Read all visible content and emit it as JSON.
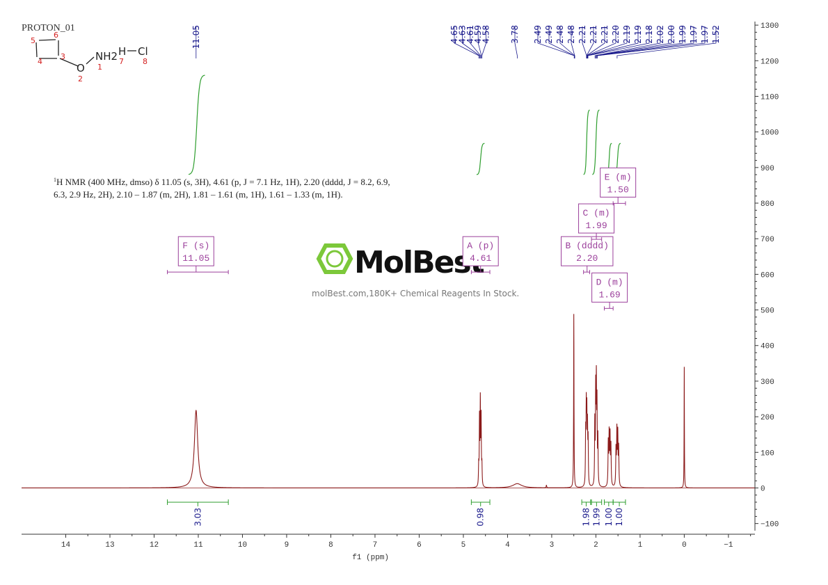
{
  "experiment_label": "PROTON_01",
  "molecule": {
    "atoms": [
      {
        "symbol": "O",
        "number": "2"
      },
      {
        "symbol": "NH2",
        "number": "1"
      },
      {
        "symbol": "H",
        "number": "7"
      },
      {
        "symbol": "Cl",
        "number": "8"
      }
    ],
    "ring_numbers": [
      "3",
      "4",
      "5",
      "6"
    ]
  },
  "nmr_summary": {
    "line1": "H NMR (400 MHz, dmso) δ 11.05 (s, 3H), 4.61 (p, J = 7.1 Hz, 1H), 2.20 (dddd, J = 8.2, 6.9,",
    "superscript": "1",
    "line2": "6.3, 2.9 Hz, 2H), 2.10 – 1.87 (m, 2H), 1.81 – 1.61 (m, 1H), 1.61 – 1.33 (m, 1H)."
  },
  "watermark": {
    "brand": "MolBest",
    "tagline": "molBest.com,180K+ Chemical Reagents In Stock."
  },
  "colors": {
    "spectrum": "#8b1a1a",
    "peak_labels": "#1a1a8c",
    "integral": "#2e9e2e",
    "multiplet": "#9b3f9b",
    "axis": "#333333",
    "logo_green": "#7cc83a"
  },
  "chart_data": {
    "type": "line",
    "xlabel": "f1 (ppm)",
    "x_reversed": true,
    "xlim": [
      15.0,
      -1.6
    ],
    "ylim": [
      -130,
      1310
    ],
    "x_ticks": [
      14,
      13,
      12,
      11,
      10,
      9,
      8,
      7,
      6,
      5,
      4,
      3,
      2,
      1,
      0,
      -1
    ],
    "x_tick_labels": [
      "14",
      "13",
      "12",
      "11",
      "10",
      "9",
      "8",
      "7",
      "6",
      "5",
      "4",
      "3",
      "2",
      "1",
      "0",
      "−1"
    ],
    "y_ticks": [
      -100,
      0,
      100,
      200,
      300,
      400,
      500,
      600,
      700,
      800,
      900,
      1000,
      1100,
      1200,
      1300
    ],
    "y_tick_labels": [
      "−100",
      "0",
      "100",
      "200",
      "300",
      "400",
      "500",
      "600",
      "700",
      "800",
      "900",
      "1000",
      "1100",
      "1200",
      "1300"
    ],
    "peak_list_labels": [
      "4.65",
      "4.63",
      "4.61",
      "4.59",
      "4.58",
      "3.78",
      "2.49",
      "2.49",
      "2.48",
      "2.48",
      "2.21",
      "2.21",
      "2.21",
      "2.20",
      "2.19",
      "2.19",
      "2.18",
      "2.02",
      "2.00",
      "1.99",
      "1.97",
      "1.97",
      "1.52"
    ],
    "isolated_peak_label": "11.05",
    "peaks": [
      {
        "x": 11.05,
        "h": 218,
        "w": 0.045
      },
      {
        "x": 4.653,
        "h": 55,
        "w": 0.006
      },
      {
        "x": 4.635,
        "h": 185,
        "w": 0.006
      },
      {
        "x": 4.616,
        "h": 230,
        "w": 0.006
      },
      {
        "x": 4.598,
        "h": 185,
        "w": 0.006
      },
      {
        "x": 4.58,
        "h": 55,
        "w": 0.006
      },
      {
        "x": 3.78,
        "h": 12,
        "w": 0.12
      },
      {
        "x": 3.12,
        "h": 8,
        "w": 0.006
      },
      {
        "x": 2.5,
        "h": 488,
        "w": 0.005
      },
      {
        "x": 2.232,
        "h": 140,
        "w": 0.006
      },
      {
        "x": 2.218,
        "h": 205,
        "w": 0.006
      },
      {
        "x": 2.205,
        "h": 185,
        "w": 0.006
      },
      {
        "x": 2.19,
        "h": 150,
        "w": 0.006
      },
      {
        "x": 2.176,
        "h": 120,
        "w": 0.006
      },
      {
        "x": 2.025,
        "h": 175,
        "w": 0.006
      },
      {
        "x": 2.005,
        "h": 255,
        "w": 0.006
      },
      {
        "x": 1.99,
        "h": 270,
        "w": 0.006
      },
      {
        "x": 1.975,
        "h": 215,
        "w": 0.006
      },
      {
        "x": 1.955,
        "h": 130,
        "w": 0.006
      },
      {
        "x": 1.72,
        "h": 120,
        "w": 0.007
      },
      {
        "x": 1.7,
        "h": 140,
        "w": 0.007
      },
      {
        "x": 1.68,
        "h": 135,
        "w": 0.007
      },
      {
        "x": 1.66,
        "h": 110,
        "w": 0.007
      },
      {
        "x": 1.545,
        "h": 100,
        "w": 0.007
      },
      {
        "x": 1.525,
        "h": 150,
        "w": 0.007
      },
      {
        "x": 1.505,
        "h": 140,
        "w": 0.007
      },
      {
        "x": 1.485,
        "h": 105,
        "w": 0.007
      },
      {
        "x": 0.0,
        "h": 340,
        "w": 0.004
      }
    ],
    "integrals": [
      {
        "from": 11.22,
        "to": 10.85,
        "base": 880,
        "top": 1160,
        "value": "3.03",
        "bar_from": 11.7,
        "bar_to": 10.32
      },
      {
        "from": 4.7,
        "to": 4.52,
        "base": 880,
        "top": 968,
        "value": "0.98",
        "bar_from": 4.82,
        "bar_to": 4.4
      },
      {
        "from": 2.28,
        "to": 2.14,
        "base": 880,
        "top": 1062,
        "value": "1.98",
        "bar_from": 2.32,
        "bar_to": 2.12
      },
      {
        "from": 2.08,
        "to": 1.92,
        "base": 880,
        "top": 1062,
        "value": "1.99",
        "bar_from": 2.1,
        "bar_to": 1.87
      },
      {
        "from": 1.76,
        "to": 1.64,
        "base": 880,
        "top": 968,
        "value": "1.00",
        "bar_from": 1.81,
        "bar_to": 1.61
      },
      {
        "from": 1.58,
        "to": 1.44,
        "base": 880,
        "top": 968,
        "value": "1.00",
        "bar_from": 1.61,
        "bar_to": 1.33
      }
    ],
    "multiplets": [
      {
        "letter": "F",
        "type": "(s)",
        "value": "11.05",
        "center": 11.05,
        "level": 620,
        "bar_from": 11.7,
        "bar_to": 10.32
      },
      {
        "letter": "A",
        "type": "(p)",
        "value": "4.61",
        "center": 4.61,
        "level": 620,
        "bar_from": 4.82,
        "bar_to": 4.4
      },
      {
        "letter": "B",
        "type": "(dddd)",
        "value": "2.20",
        "center": 2.2,
        "level": 620,
        "bar_from": 2.28,
        "bar_to": 2.14
      },
      {
        "letter": "C",
        "type": "(m)",
        "value": "1.99",
        "center": 1.99,
        "level": 712,
        "bar_from": 2.1,
        "bar_to": 1.87
      },
      {
        "letter": "D",
        "type": "(m)",
        "value": "1.69",
        "center": 1.69,
        "level": 518,
        "bar_from": 1.81,
        "bar_to": 1.61
      },
      {
        "letter": "E",
        "type": "(m)",
        "value": "1.50",
        "center": 1.5,
        "level": 813,
        "bar_from": 1.61,
        "bar_to": 1.33
      }
    ]
  }
}
